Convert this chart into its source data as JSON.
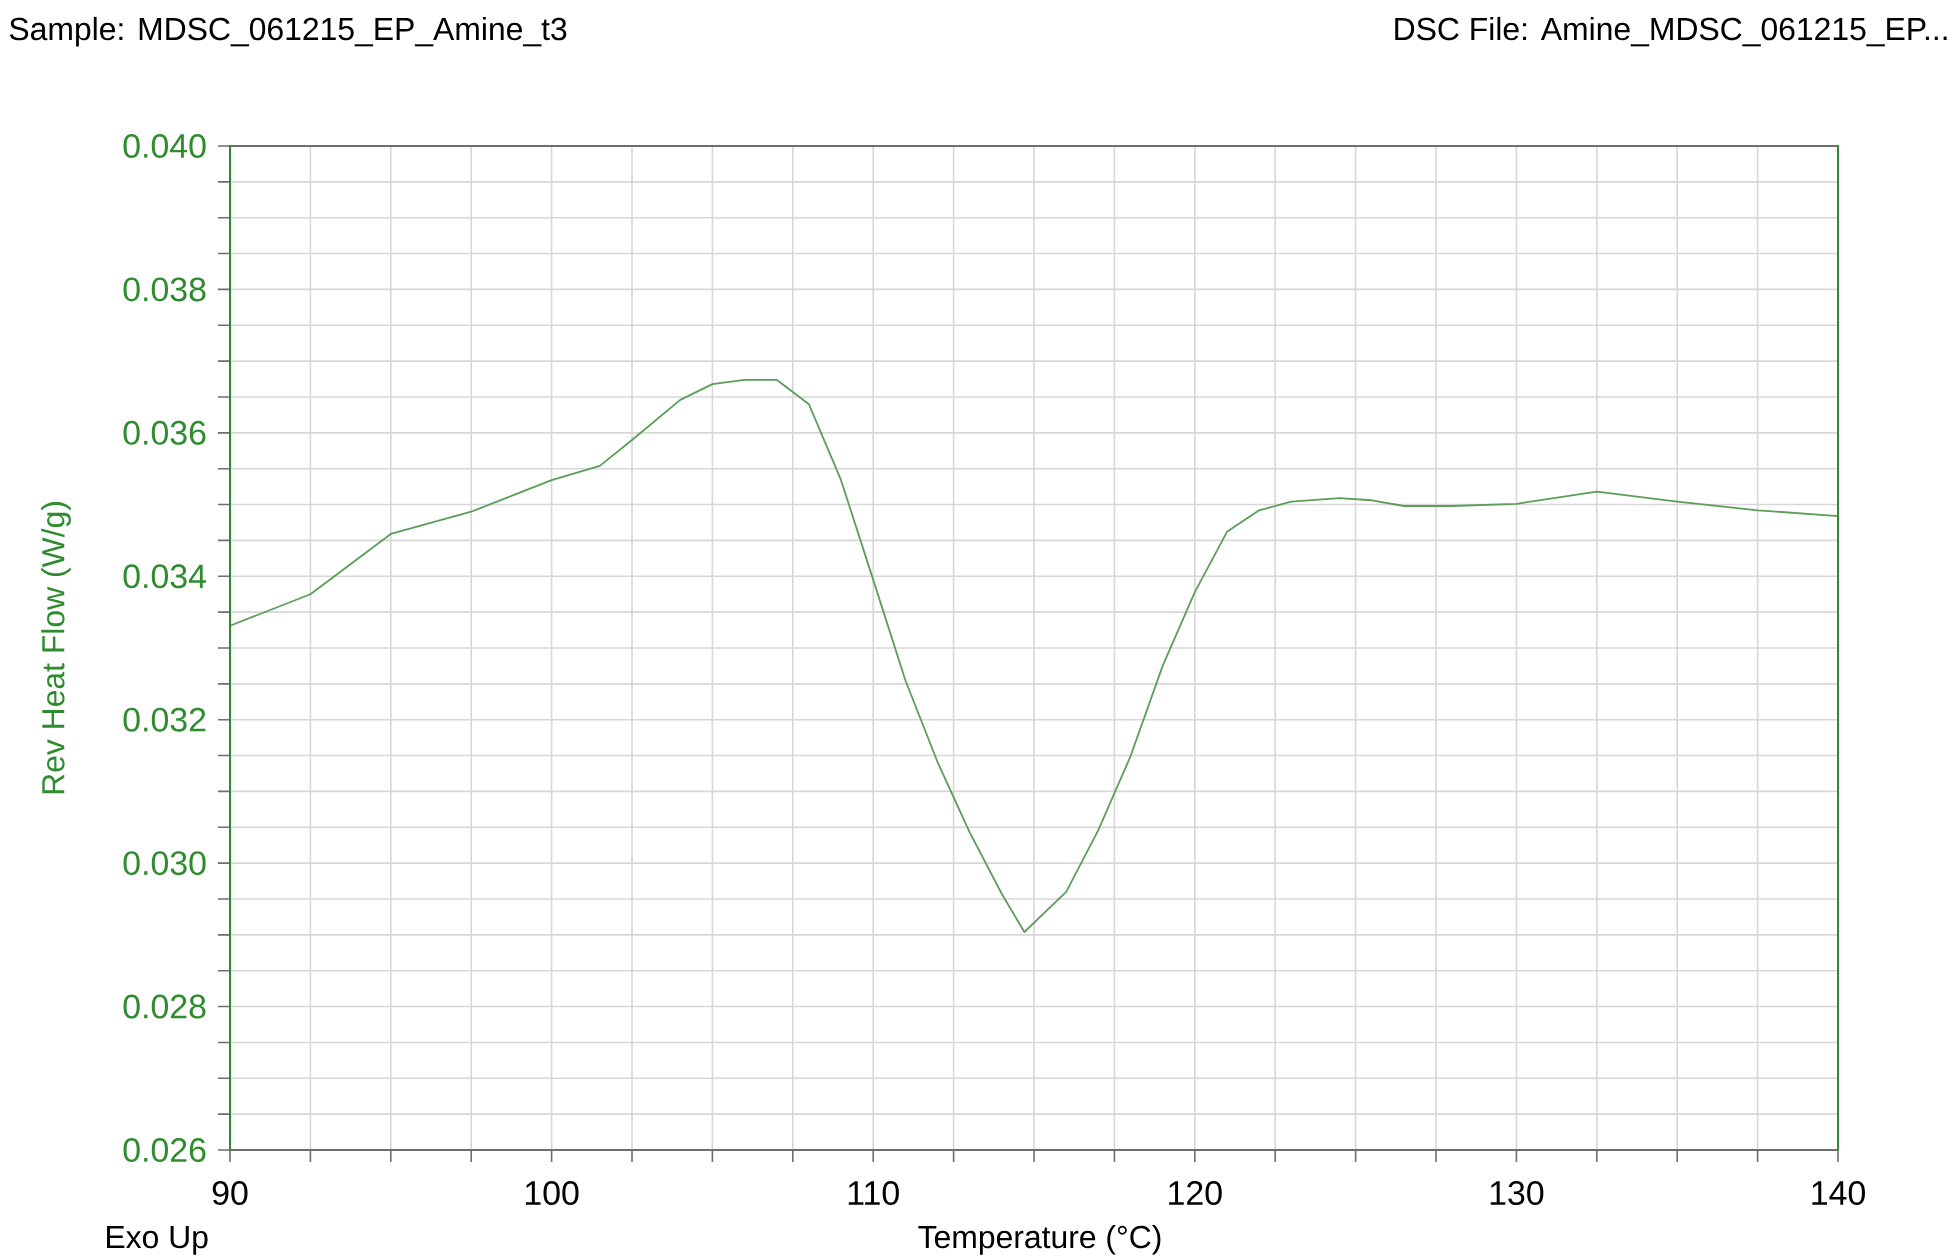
{
  "chart_data": {
    "type": "line",
    "xlabel": "Temperature (°C)",
    "ylabel": "Rev Heat Flow (W/g)",
    "annotations": [
      "Sample: MDSC_061215_EP_Amine_t3",
      "DSC File: Amine_MDSC_061215_EP...",
      "Exo Up"
    ],
    "x": [
      90,
      92.5,
      95,
      97.5,
      100,
      101.5,
      102.5,
      104,
      105,
      106,
      107,
      108,
      109,
      110,
      111,
      112,
      113,
      114,
      114.7,
      116,
      117,
      118,
      119,
      120,
      121,
      122,
      123,
      124.5,
      125.5,
      126.5,
      128,
      130,
      132.5,
      135,
      137.5,
      140
    ],
    "series": [
      {
        "color": "#5a9e5a",
        "values": [
          0.03331,
          0.03375,
          0.03459,
          0.0349,
          0.03534,
          0.03554,
          0.0359,
          0.03646,
          0.03668,
          0.03674,
          0.03674,
          0.0364,
          0.03534,
          0.03395,
          0.03255,
          0.03141,
          0.03043,
          0.02957,
          0.02904,
          0.0296,
          0.03046,
          0.03149,
          0.03275,
          0.03378,
          0.03462,
          0.03492,
          0.03504,
          0.03509,
          0.03506,
          0.03498,
          0.03498,
          0.03501,
          0.03518,
          0.03504,
          0.03492,
          0.03484
        ]
      }
    ],
    "xlim": [
      90,
      140
    ],
    "xticks": [
      90,
      {
        "value": 92.5,
        "label": null
      },
      {
        "value": 95,
        "label": null
      },
      {
        "value": 97.5,
        "label": null
      },
      100,
      {
        "value": 102.5,
        "label": null
      },
      {
        "value": 105,
        "label": null
      },
      {
        "value": 107.5,
        "label": null
      },
      110,
      {
        "value": 112.5,
        "label": null
      },
      {
        "value": 115,
        "label": null
      },
      {
        "value": 117.5,
        "label": null
      },
      120,
      {
        "value": 122.5,
        "label": null
      },
      {
        "value": 125,
        "label": null
      },
      {
        "value": 127.5,
        "label": null
      },
      130,
      {
        "value": 132.5,
        "label": null
      },
      {
        "value": 135,
        "label": null
      },
      {
        "value": 137.5,
        "label": null
      },
      140
    ],
    "ylim": [
      0.026,
      0.04
    ],
    "yticks": [
      {
        "value": 0.026,
        "label": "0.026"
      },
      {
        "value": 0.0265,
        "label": null
      },
      {
        "value": 0.027,
        "label": null
      },
      {
        "value": 0.0275,
        "label": null
      },
      {
        "value": 0.028,
        "label": "0.028"
      },
      {
        "value": 0.0285,
        "label": null
      },
      {
        "value": 0.029,
        "label": null
      },
      {
        "value": 0.0295,
        "label": null
      },
      {
        "value": 0.03,
        "label": "0.030"
      },
      {
        "value": 0.0305,
        "label": null
      },
      {
        "value": 0.031,
        "label": null
      },
      {
        "value": 0.0315,
        "label": null
      },
      {
        "value": 0.032,
        "label": "0.032"
      },
      {
        "value": 0.0325,
        "label": null
      },
      {
        "value": 0.033,
        "label": null
      },
      {
        "value": 0.0335,
        "label": null
      },
      {
        "value": 0.034,
        "label": "0.034"
      },
      {
        "value": 0.0345,
        "label": null
      },
      {
        "value": 0.035,
        "label": null
      },
      {
        "value": 0.0355,
        "label": null
      },
      {
        "value": 0.036,
        "label": "0.036"
      },
      {
        "value": 0.0365,
        "label": null
      },
      {
        "value": 0.037,
        "label": null
      },
      {
        "value": 0.0375,
        "label": null
      },
      {
        "value": 0.038,
        "label": "0.038"
      },
      {
        "value": 0.0385,
        "label": null
      },
      {
        "value": 0.039,
        "label": null
      },
      {
        "value": 0.0395,
        "label": null
      },
      {
        "value": 0.04,
        "label": "0.040"
      }
    ],
    "grid": true
  }
}
